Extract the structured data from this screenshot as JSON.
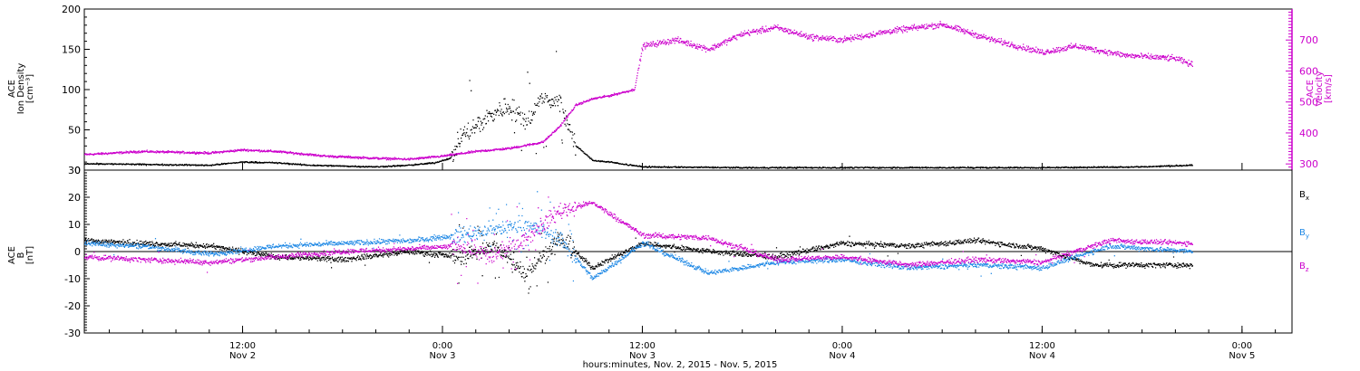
{
  "figure": {
    "xlabel": "hours:minutes, Nov.  2, 2015 - Nov.  5, 2015",
    "x_range": [
      "2015-11-02 02:30",
      "2015-11-05 03:00"
    ],
    "x_ticks": [
      {
        "time": "2015-11-02 12:00",
        "label_time": "12:00",
        "label_date": "Nov 2"
      },
      {
        "time": "2015-11-03 00:00",
        "label_time": "0:00",
        "label_date": "Nov 3"
      },
      {
        "time": "2015-11-03 12:00",
        "label_time": "12:00",
        "label_date": "Nov 3"
      },
      {
        "time": "2015-11-04 00:00",
        "label_time": "0:00",
        "label_date": "Nov 4"
      },
      {
        "time": "2015-11-04 12:00",
        "label_time": "12:00",
        "label_date": "Nov 4"
      },
      {
        "time": "2015-11-05 00:00",
        "label_time": "0:00",
        "label_date": "Nov 5"
      }
    ],
    "colors": {
      "black": "#000000",
      "magenta": "#cc00cc",
      "blue": "#1e88e5"
    }
  },
  "chart_data": [
    {
      "type": "scatter",
      "panel": "top",
      "ylabel_left": [
        "ACE",
        "Ion Density",
        "[cm⁻³]"
      ],
      "ylabel_right": [
        "ACE",
        "Velocity",
        "[km/s]"
      ],
      "ylim_left": [
        0,
        200
      ],
      "ylim_right": [
        280,
        800
      ],
      "yticks_left": [
        0,
        50,
        100,
        150,
        200
      ],
      "yticks_right": [
        300,
        400,
        500,
        600,
        700
      ],
      "grid": false,
      "series": [
        {
          "axis": "left",
          "color": "#000000",
          "points": [
            [
              "2015-11-02 02:30",
              8
            ],
            [
              "2015-11-02 06:00",
              7
            ],
            [
              "2015-11-02 10:00",
              6
            ],
            [
              "2015-11-02 12:00",
              10
            ],
            [
              "2015-11-02 14:00",
              9
            ],
            [
              "2015-11-02 16:00",
              6
            ],
            [
              "2015-11-02 18:00",
              5
            ],
            [
              "2015-11-02 20:00",
              4
            ],
            [
              "2015-11-02 22:00",
              6
            ],
            [
              "2015-11-02 23:30",
              9
            ],
            [
              "2015-11-03 00:30",
              15
            ],
            [
              "2015-11-03 01:00",
              40
            ],
            [
              "2015-11-03 02:00",
              55
            ],
            [
              "2015-11-03 03:00",
              70
            ],
            [
              "2015-11-03 04:00",
              80
            ],
            [
              "2015-11-03 05:00",
              60
            ],
            [
              "2015-11-03 06:00",
              90
            ],
            [
              "2015-11-03 07:00",
              85
            ],
            [
              "2015-11-03 08:00",
              30
            ],
            [
              "2015-11-03 09:00",
              12
            ],
            [
              "2015-11-03 10:00",
              10
            ],
            [
              "2015-11-03 12:00",
              4
            ],
            [
              "2015-11-03 18:00",
              3
            ],
            [
              "2015-11-04 00:00",
              3
            ],
            [
              "2015-11-04 06:00",
              3
            ],
            [
              "2015-11-04 12:00",
              3
            ],
            [
              "2015-11-04 18:00",
              4
            ],
            [
              "2015-11-04 21:00",
              6
            ]
          ]
        },
        {
          "axis": "right",
          "color": "#cc00cc",
          "points": [
            [
              "2015-11-02 02:30",
              330
            ],
            [
              "2015-11-02 06:00",
              340
            ],
            [
              "2015-11-02 10:00",
              335
            ],
            [
              "2015-11-02 12:00",
              345
            ],
            [
              "2015-11-02 14:00",
              340
            ],
            [
              "2015-11-02 17:00",
              325
            ],
            [
              "2015-11-02 20:00",
              318
            ],
            [
              "2015-11-02 22:00",
              315
            ],
            [
              "2015-11-03 00:00",
              325
            ],
            [
              "2015-11-03 02:00",
              340
            ],
            [
              "2015-11-03 04:00",
              350
            ],
            [
              "2015-11-03 06:00",
              370
            ],
            [
              "2015-11-03 07:00",
              420
            ],
            [
              "2015-11-03 08:00",
              490
            ],
            [
              "2015-11-03 09:00",
              510
            ],
            [
              "2015-11-03 10:00",
              520
            ],
            [
              "2015-11-03 11:30",
              540
            ],
            [
              "2015-11-03 12:00",
              680
            ],
            [
              "2015-11-03 14:00",
              700
            ],
            [
              "2015-11-03 16:00",
              670
            ],
            [
              "2015-11-03 18:00",
              720
            ],
            [
              "2015-11-03 20:00",
              740
            ],
            [
              "2015-11-03 22:00",
              710
            ],
            [
              "2015-11-04 00:00",
              700
            ],
            [
              "2015-11-04 03:00",
              730
            ],
            [
              "2015-11-04 06:00",
              750
            ],
            [
              "2015-11-04 09:00",
              700
            ],
            [
              "2015-11-04 12:00",
              660
            ],
            [
              "2015-11-04 14:00",
              680
            ],
            [
              "2015-11-04 17:00",
              650
            ],
            [
              "2015-11-04 20:00",
              640
            ],
            [
              "2015-11-04 21:00",
              620
            ]
          ]
        }
      ]
    },
    {
      "type": "scatter",
      "panel": "bottom",
      "ylabel_left": [
        "ACE",
        "B",
        "[nT]"
      ],
      "ylim": [
        -30,
        30
      ],
      "yticks": [
        -30,
        -20,
        -10,
        0,
        10,
        20,
        30
      ],
      "grid": false,
      "zero_line": true,
      "legend_position": "right",
      "series": [
        {
          "name": "Bx",
          "color": "#000000",
          "points": [
            [
              "2015-11-02 02:30",
              4
            ],
            [
              "2015-11-02 06:00",
              3
            ],
            [
              "2015-11-02 10:00",
              2
            ],
            [
              "2015-11-02 14:00",
              -2
            ],
            [
              "2015-11-02 18:00",
              -3
            ],
            [
              "2015-11-02 22:00",
              0
            ],
            [
              "2015-11-03 01:00",
              -2
            ],
            [
              "2015-11-03 03:00",
              2
            ],
            [
              "2015-11-03 05:00",
              -8
            ],
            [
              "2015-11-03 07:00",
              5
            ],
            [
              "2015-11-03 09:00",
              -6
            ],
            [
              "2015-11-03 12:00",
              3
            ],
            [
              "2015-11-03 16:00",
              0
            ],
            [
              "2015-11-03 20:00",
              -2
            ],
            [
              "2015-11-04 00:00",
              3
            ],
            [
              "2015-11-04 04:00",
              2
            ],
            [
              "2015-11-04 08:00",
              4
            ],
            [
              "2015-11-04 12:00",
              1
            ],
            [
              "2015-11-04 15:00",
              -5
            ],
            [
              "2015-11-04 21:00",
              -5
            ]
          ]
        },
        {
          "name": "By",
          "color": "#1e88e5",
          "points": [
            [
              "2015-11-02 02:30",
              3
            ],
            [
              "2015-11-02 06:00",
              2
            ],
            [
              "2015-11-02 10:00",
              -1
            ],
            [
              "2015-11-02 14:00",
              2
            ],
            [
              "2015-11-02 18:00",
              3
            ],
            [
              "2015-11-02 22:00",
              4
            ],
            [
              "2015-11-03 01:00",
              6
            ],
            [
              "2015-11-03 03:00",
              8
            ],
            [
              "2015-11-03 05:00",
              10
            ],
            [
              "2015-11-03 07:00",
              5
            ],
            [
              "2015-11-03 09:00",
              -10
            ],
            [
              "2015-11-03 12:00",
              3
            ],
            [
              "2015-11-03 16:00",
              -8
            ],
            [
              "2015-11-03 20:00",
              -4
            ],
            [
              "2015-11-04 00:00",
              -3
            ],
            [
              "2015-11-04 04:00",
              -6
            ],
            [
              "2015-11-04 08:00",
              -5
            ],
            [
              "2015-11-04 12:00",
              -6
            ],
            [
              "2015-11-04 16:00",
              2
            ],
            [
              "2015-11-04 21:00",
              0
            ]
          ]
        },
        {
          "name": "Bz",
          "color": "#cc00cc",
          "points": [
            [
              "2015-11-02 02:30",
              -2
            ],
            [
              "2015-11-02 06:00",
              -3
            ],
            [
              "2015-11-02 10:00",
              -4
            ],
            [
              "2015-11-02 14:00",
              -2
            ],
            [
              "2015-11-02 18:00",
              0
            ],
            [
              "2015-11-02 22:00",
              1
            ],
            [
              "2015-11-03 01:00",
              2
            ],
            [
              "2015-11-03 03:00",
              -2
            ],
            [
              "2015-11-03 05:00",
              5
            ],
            [
              "2015-11-03 07:00",
              15
            ],
            [
              "2015-11-03 09:00",
              18
            ],
            [
              "2015-11-03 12:00",
              6
            ],
            [
              "2015-11-03 16:00",
              5
            ],
            [
              "2015-11-03 20:00",
              -3
            ],
            [
              "2015-11-04 00:00",
              -2
            ],
            [
              "2015-11-04 04:00",
              -5
            ],
            [
              "2015-11-04 08:00",
              -3
            ],
            [
              "2015-11-04 12:00",
              -4
            ],
            [
              "2015-11-04 16:00",
              4
            ],
            [
              "2015-11-04 21:00",
              3
            ]
          ]
        }
      ]
    }
  ]
}
